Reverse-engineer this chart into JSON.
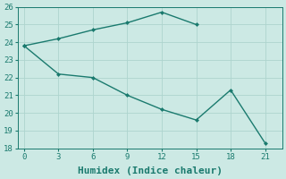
{
  "line1_x": [
    0,
    3,
    6,
    9,
    12,
    15
  ],
  "line1_y": [
    23.8,
    24.2,
    24.7,
    25.1,
    25.7,
    25.0
  ],
  "line2_x": [
    0,
    3,
    6,
    9,
    12,
    15,
    18,
    21
  ],
  "line2_y": [
    23.8,
    22.2,
    22.0,
    21.0,
    20.2,
    19.6,
    21.3,
    18.3
  ],
  "color": "#1a7a6e",
  "bg_color": "#cce9e4",
  "grid_color": "#aed4ce",
  "xlabel": "Humidex (Indice chaleur)",
  "xlim": [
    -0.5,
    22.5
  ],
  "ylim": [
    18,
    26
  ],
  "xticks": [
    0,
    3,
    6,
    9,
    12,
    15,
    18,
    21
  ],
  "yticks": [
    18,
    19,
    20,
    21,
    22,
    23,
    24,
    25,
    26
  ],
  "marker": "D",
  "markersize": 2.5,
  "linewidth": 1.0,
  "xlabel_fontsize": 8,
  "tick_fontsize": 6.5
}
